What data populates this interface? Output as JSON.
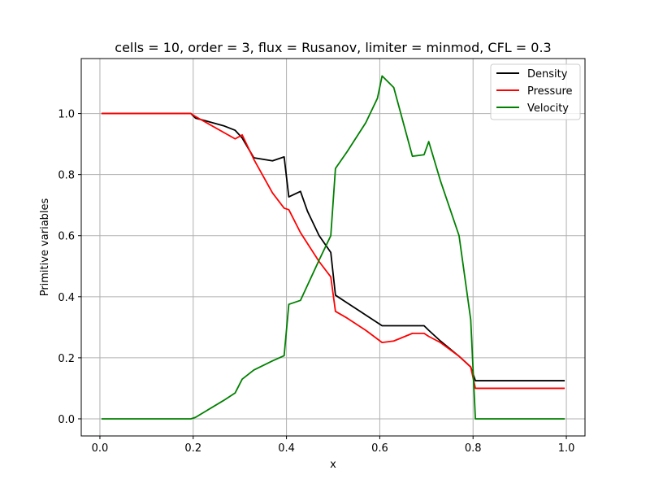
{
  "chart_data": {
    "type": "line",
    "title": "cells = 10, order = 3, flux = Rusanov, limiter = minmod, CFL = 0.3",
    "xlabel": "x",
    "ylabel": "Primitive variables",
    "xlim": [
      -0.04,
      1.04
    ],
    "ylim": [
      -0.056,
      1.18
    ],
    "xticks": [
      0.0,
      0.2,
      0.4,
      0.6,
      0.8,
      1.0
    ],
    "xtick_labels": [
      "0.0",
      "0.2",
      "0.4",
      "0.6",
      "0.8",
      "1.0"
    ],
    "yticks": [
      0.0,
      0.2,
      0.4,
      0.6,
      0.8,
      1.0
    ],
    "ytick_labels": [
      "0.0",
      "0.2",
      "0.4",
      "0.6",
      "0.8",
      "1.0"
    ],
    "grid": true,
    "legend_position": "top-right",
    "series": [
      {
        "name": "Density",
        "color": "#000000",
        "x": [
          0.005,
          0.195,
          0.205,
          0.265,
          0.29,
          0.305,
          0.33,
          0.37,
          0.395,
          0.405,
          0.43,
          0.445,
          0.47,
          0.495,
          0.505,
          0.53,
          0.57,
          0.605,
          0.63,
          0.67,
          0.695,
          0.705,
          0.73,
          0.77,
          0.795,
          0.805,
          0.995
        ],
        "y": [
          1.0,
          1.0,
          0.985,
          0.96,
          0.945,
          0.92,
          0.855,
          0.845,
          0.858,
          0.727,
          0.745,
          0.68,
          0.6,
          0.545,
          0.405,
          0.38,
          0.34,
          0.305,
          0.305,
          0.305,
          0.305,
          0.29,
          0.255,
          0.205,
          0.17,
          0.125,
          0.125
        ]
      },
      {
        "name": "Pressure",
        "color": "#ff0000",
        "x": [
          0.005,
          0.195,
          0.205,
          0.29,
          0.305,
          0.33,
          0.37,
          0.395,
          0.405,
          0.43,
          0.47,
          0.495,
          0.505,
          0.53,
          0.57,
          0.605,
          0.63,
          0.67,
          0.695,
          0.705,
          0.73,
          0.77,
          0.795,
          0.805,
          0.995
        ],
        "y": [
          1.0,
          1.0,
          0.99,
          0.917,
          0.93,
          0.85,
          0.74,
          0.69,
          0.685,
          0.61,
          0.515,
          0.465,
          0.352,
          0.33,
          0.29,
          0.25,
          0.255,
          0.28,
          0.28,
          0.27,
          0.25,
          0.205,
          0.17,
          0.1,
          0.1
        ]
      },
      {
        "name": "Velocity",
        "color": "#008000",
        "x": [
          0.005,
          0.195,
          0.205,
          0.265,
          0.29,
          0.305,
          0.33,
          0.37,
          0.395,
          0.405,
          0.43,
          0.47,
          0.495,
          0.505,
          0.53,
          0.57,
          0.595,
          0.605,
          0.63,
          0.67,
          0.695,
          0.705,
          0.73,
          0.77,
          0.795,
          0.805,
          0.995
        ],
        "y": [
          0.0,
          0.0,
          0.005,
          0.06,
          0.085,
          0.13,
          0.16,
          0.19,
          0.207,
          0.375,
          0.388,
          0.52,
          0.6,
          0.82,
          0.875,
          0.97,
          1.05,
          1.123,
          1.085,
          0.86,
          0.865,
          0.908,
          0.78,
          0.6,
          0.325,
          0.0,
          0.0
        ]
      }
    ]
  }
}
